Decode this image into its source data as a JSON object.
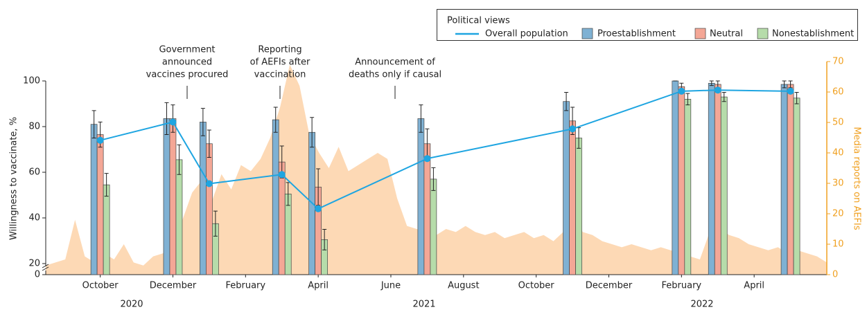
{
  "chart_data": {
    "type": "combo",
    "y_label": "Willingness to vaccinate, %",
    "y2_label": "Media reports on AEFIs",
    "legend": "top-right",
    "legend_title": "Political views",
    "xlim": [
      "2020-09",
      "2022-06"
    ],
    "xticks": [
      {
        "value": "2020-10",
        "label": "October"
      },
      {
        "value": "2020-12",
        "label": "December"
      },
      {
        "value": "2021-02",
        "label": "February"
      },
      {
        "value": "2021-04",
        "label": "April"
      },
      {
        "value": "2021-06",
        "label": "June"
      },
      {
        "value": "2021-08",
        "label": "August"
      },
      {
        "value": "2021-10",
        "label": "October"
      },
      {
        "value": "2021-12",
        "label": "December"
      },
      {
        "value": "2022-02",
        "label": "February"
      },
      {
        "value": "2022-04",
        "label": "April"
      }
    ],
    "years": [
      "2020",
      "2021",
      "2022"
    ],
    "ylim": [
      0,
      100
    ],
    "y_axis_break": [
      0,
      20
    ],
    "yticks": [
      0,
      20,
      40,
      60,
      80,
      100
    ],
    "y2lim": [
      0,
      70
    ],
    "y2ticks": [
      0,
      10,
      20,
      30,
      40,
      50,
      60,
      70
    ],
    "y2_color": "#f0a020",
    "x": [
      "2020-10",
      "2020-12",
      "2021-01",
      "2021-03",
      "2021-04",
      "2021-07",
      "2021-11",
      "2022-02",
      "2022-03",
      "2022-05"
    ],
    "series": [
      {
        "name": "Overall population",
        "kind": "line",
        "color": "#1ea5e1",
        "values": [
          74,
          82,
          55,
          59,
          44,
          66,
          79,
          95.5,
          96,
          95.5
        ]
      },
      {
        "name": "Proestablishment",
        "kind": "bar",
        "color": "#7fb1d3",
        "values": [
          81,
          83.5,
          82,
          83,
          77.5,
          83.5,
          91,
          100,
          99,
          98.5
        ],
        "errors": [
          6,
          7,
          6,
          5.5,
          6.5,
          6,
          4,
          0,
          1,
          1.5
        ]
      },
      {
        "name": "Neutral",
        "kind": "bar",
        "color": "#f4a796",
        "values": [
          76.5,
          83.5,
          72.5,
          64.5,
          53.5,
          72.5,
          82.5,
          97.5,
          98.5,
          98.5
        ],
        "errors": [
          5.5,
          6,
          6,
          7,
          8,
          6.5,
          6,
          1.5,
          1.5,
          1.5
        ]
      },
      {
        "name": "Nonestablishment",
        "kind": "bar",
        "color": "#b6dcaa",
        "values": [
          54.5,
          65.5,
          37.5,
          50.5,
          30.5,
          57,
          75,
          92,
          93,
          92.5
        ],
        "errors": [
          5,
          6.5,
          5.5,
          5,
          4.5,
          5,
          4.5,
          2.5,
          2,
          2.5
        ]
      }
    ],
    "area": {
      "axis": "y2",
      "color": "#fdd9b5",
      "values": [
        3,
        4,
        5,
        18,
        6,
        4,
        7,
        5,
        10,
        4,
        3,
        6,
        7,
        10,
        18,
        27,
        31,
        24,
        33,
        28,
        36,
        34,
        38,
        45,
        55,
        69,
        62,
        46,
        40,
        35,
        42,
        34,
        36,
        38,
        40,
        38,
        25,
        16,
        15,
        14,
        13,
        15,
        14,
        16,
        14,
        13,
        14,
        12,
        13,
        14,
        12,
        13,
        11,
        14,
        19,
        14,
        13,
        11,
        10,
        9,
        10,
        9,
        8,
        9,
        8,
        7,
        6,
        5,
        14,
        15,
        13,
        12,
        10,
        9,
        8,
        9,
        7,
        8,
        7,
        6,
        4
      ]
    },
    "annotations": [
      {
        "lines": [
          "Government",
          "announced",
          "vaccines procured"
        ]
      },
      {
        "lines": [
          "Reporting",
          "of AEFIs after",
          "vaccination"
        ]
      },
      {
        "lines": [
          "Announcement of",
          "deaths only if causal"
        ]
      }
    ]
  }
}
